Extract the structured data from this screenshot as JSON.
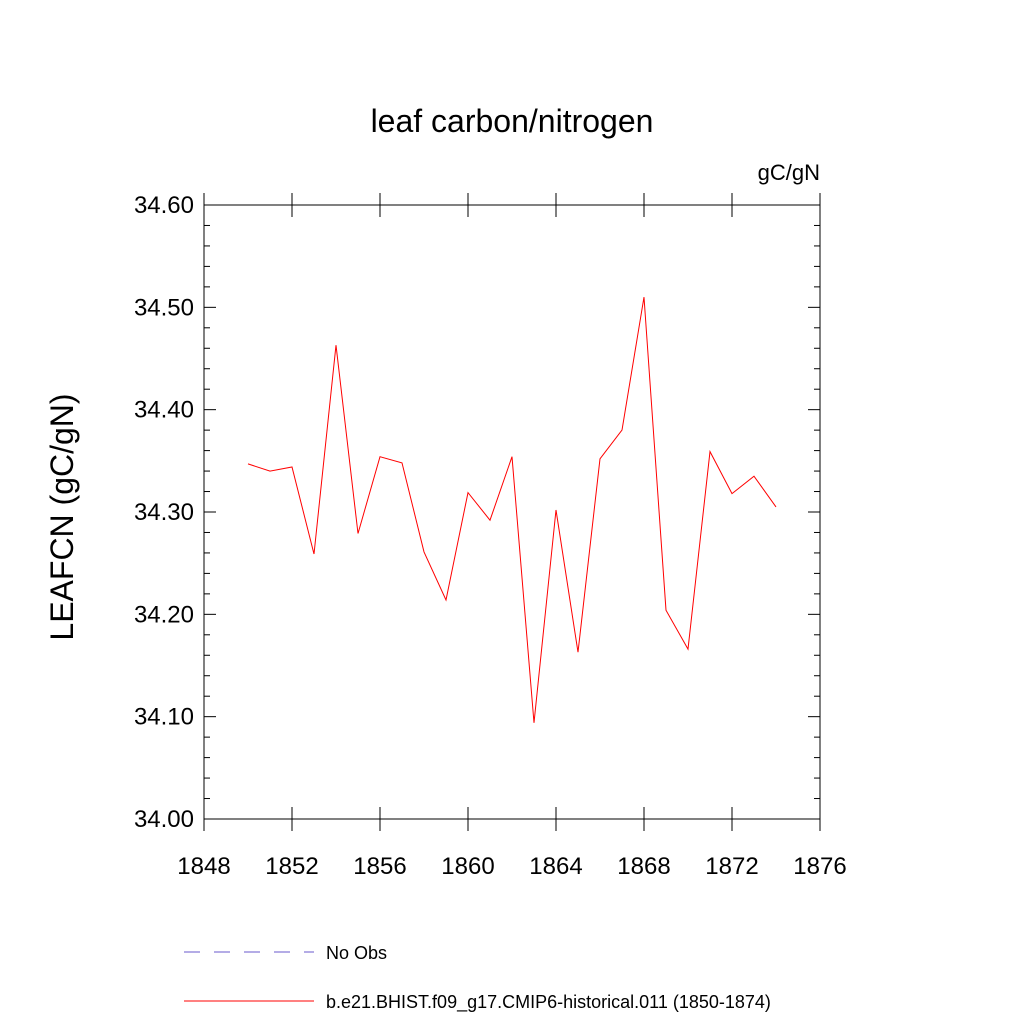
{
  "chart_data": {
    "type": "line",
    "title": "leaf carbon/nitrogen",
    "units": "gC/gN",
    "ylabel": "LEAFCN  (gC/gN)",
    "xlabel": "",
    "xlim": [
      1848,
      1876
    ],
    "ylim": [
      34.0,
      34.6
    ],
    "x_ticks": [
      1848,
      1852,
      1856,
      1860,
      1864,
      1868,
      1872,
      1876
    ],
    "x_tick_labels": [
      "1848",
      "1852",
      "1856",
      "1860",
      "1864",
      "1868",
      "1872",
      "1876"
    ],
    "y_ticks": [
      34.0,
      34.1,
      34.2,
      34.3,
      34.4,
      34.5,
      34.6
    ],
    "y_tick_labels": [
      "34.00",
      "34.10",
      "34.20",
      "34.30",
      "34.40",
      "34.50",
      "34.60"
    ],
    "grid": false,
    "legend_position": "bottom",
    "series": [
      {
        "name": "b.e21.BHIST.f09_g17.CMIP6-historical.011 (1850-1874)",
        "color": "#ff0000",
        "dash": "solid",
        "x": [
          1850,
          1851,
          1852,
          1853,
          1854,
          1855,
          1856,
          1857,
          1858,
          1859,
          1860,
          1861,
          1862,
          1863,
          1864,
          1865,
          1866,
          1867,
          1868,
          1869,
          1870,
          1871,
          1872,
          1873,
          1874
        ],
        "values": [
          34.347,
          34.34,
          34.344,
          34.259,
          34.463,
          34.279,
          34.354,
          34.348,
          34.261,
          34.214,
          34.319,
          34.292,
          34.354,
          34.094,
          34.302,
          34.163,
          34.352,
          34.38,
          34.51,
          34.204,
          34.166,
          34.359,
          34.318,
          34.335,
          34.305
        ]
      }
    ],
    "legend": [
      {
        "label": "No Obs",
        "color": "#6a5acd",
        "dash": "dashed"
      },
      {
        "label": "b.e21.BHIST.f09_g17.CMIP6-historical.011 (1850-1874)",
        "color": "#ff0000",
        "dash": "solid"
      }
    ]
  }
}
